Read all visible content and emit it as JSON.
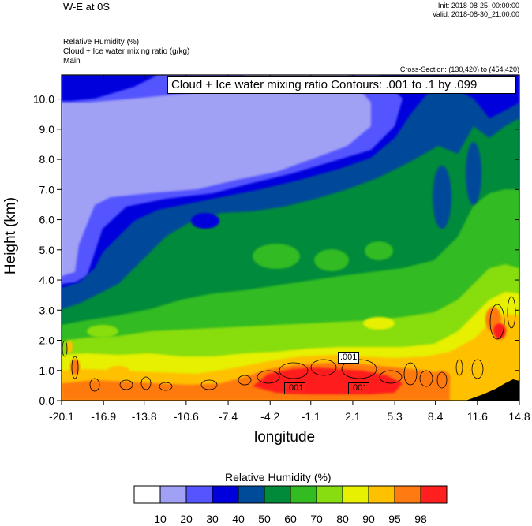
{
  "header": {
    "title": "W-E at 0S",
    "init": "Init: 2018-08-25_00:00:00",
    "valid": "Valid: 2018-08-30_21:00:00",
    "fields": [
      "Relative Humidity   (%)",
      "Cloud + Ice water mixing ratio   (g/kg)",
      "Main"
    ],
    "cross_section": "Cross-Section: (130,420) to (454,420)"
  },
  "contour_label": "Cloud + Ice water mixing ratio Contours: .001 to .1 by .099",
  "contour_marks": [
    ".001",
    ".001",
    ".001"
  ],
  "colorbar": {
    "title": "Relative Humidity  (%)",
    "levels": [
      "10",
      "20",
      "30",
      "40",
      "50",
      "60",
      "70",
      "80",
      "90",
      "95",
      "98"
    ],
    "colors": [
      "#ffffff",
      "#a0a0f5",
      "#5555ff",
      "#0000dd",
      "#004a9a",
      "#008a3a",
      "#33bb22",
      "#88dd11",
      "#e6f000",
      "#ffc000",
      "#ff7a10",
      "#ff1f1f"
    ]
  },
  "chart_data": {
    "type": "heatmap",
    "xlabel": "longitude",
    "ylabel": "Height (km)",
    "x_ticks": [
      "-20.1",
      "-16.9",
      "-13.8",
      "-10.6",
      "-7.4",
      "-4.2",
      "-1.1",
      "2.1",
      "5.3",
      "8.4",
      "11.6",
      "14.8"
    ],
    "y_ticks": [
      "0.0",
      "1.0",
      "2.0",
      "3.0",
      "4.0",
      "5.0",
      "6.0",
      "7.0",
      "8.0",
      "9.0",
      "10.0"
    ],
    "xlim": [
      -20.1,
      14.8
    ],
    "ylim": [
      0,
      10.8
    ],
    "z_label": "Relative Humidity (%)"
  }
}
